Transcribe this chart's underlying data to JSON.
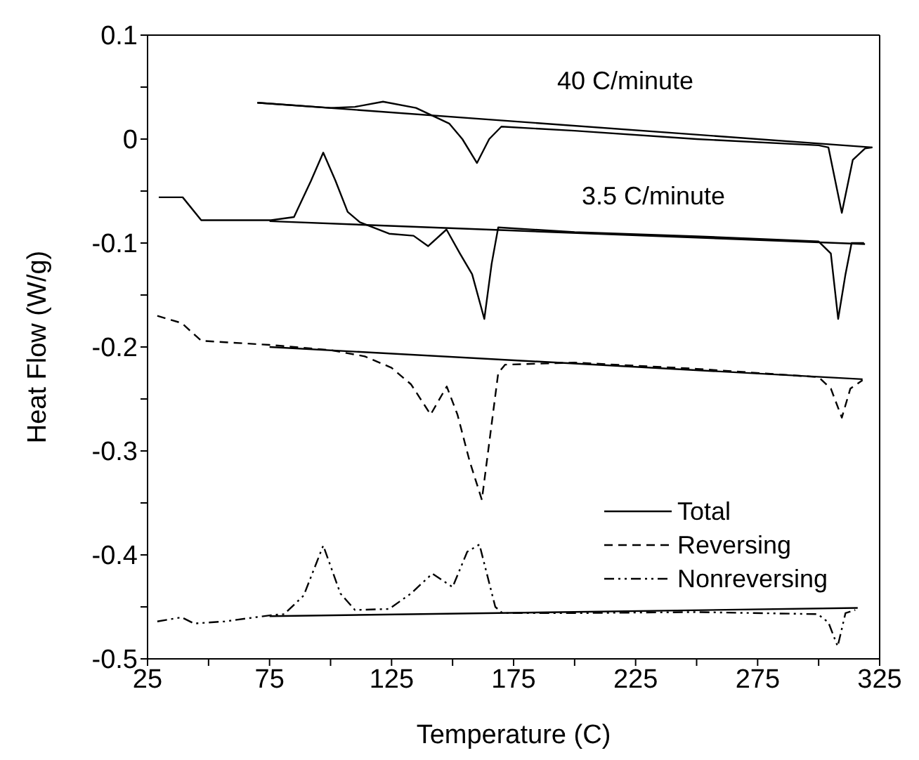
{
  "chart_data": {
    "type": "line",
    "xlabel": "Temperature (C)",
    "ylabel": "Heat Flow (W/g)",
    "xlim": [
      25,
      325
    ],
    "xticks": [
      25,
      {
        "value": 50,
        "label": null
      },
      75,
      {
        "value": 100,
        "label": null
      },
      125,
      {
        "value": 150,
        "label": null
      },
      175,
      {
        "value": 200,
        "label": null
      },
      225,
      {
        "value": 250,
        "label": null
      },
      275,
      {
        "value": 300,
        "label": null
      },
      325
    ],
    "ylim": [
      -0.5,
      0.1
    ],
    "yticks": [
      -0.5,
      {
        "value": -0.45,
        "label": null
      },
      -0.4,
      {
        "value": -0.35,
        "label": null
      },
      -0.3,
      {
        "value": -0.25,
        "label": null
      },
      -0.2,
      {
        "value": -0.15,
        "label": null
      },
      -0.1,
      {
        "value": -0.05,
        "label": null
      },
      0,
      {
        "value": 0.05,
        "label": null
      },
      0.1
    ],
    "legend": "right",
    "marker": "none",
    "annotations": [
      "40 C/minute",
      "3.5 C/minute"
    ],
    "series": [
      {
        "color": "#000000",
        "line_style": "solid",
        "x": [
          70,
          100,
          110,
          121.5,
          135,
          148.6,
          154,
          160,
          165,
          170,
          200,
          250,
          300,
          304,
          309.5,
          314,
          319,
          322
        ],
        "values": [
          0.035,
          0.03,
          0.031,
          0.036,
          0.03,
          0.015,
          0.0,
          -0.023,
          0.0,
          0.012,
          0.008,
          0.0,
          -0.006,
          -0.008,
          -0.071,
          -0.02,
          -0.009,
          -0.008
        ]
      },
      {
        "color": "#000000",
        "line_style": "solid",
        "x": [
          70,
          322
        ],
        "values": [
          0.035,
          -0.008
        ]
      },
      {
        "name": "Total",
        "color": "#000000",
        "line_style": "solid",
        "x": [
          29.6,
          39.4,
          47,
          75.6,
          85,
          92,
          97,
          102,
          107,
          112,
          124,
          134,
          140,
          147.5,
          153,
          158,
          163,
          166,
          168.7,
          200,
          250,
          300,
          305,
          308,
          311,
          313.5,
          318.6
        ],
        "values": [
          -0.056,
          -0.056,
          -0.078,
          -0.078,
          -0.075,
          -0.04,
          -0.013,
          -0.04,
          -0.07,
          -0.08,
          -0.091,
          -0.093,
          -0.103,
          -0.087,
          -0.11,
          -0.13,
          -0.173,
          -0.12,
          -0.085,
          -0.0895,
          -0.0935,
          -0.0985,
          -0.11,
          -0.173,
          -0.13,
          -0.1,
          -0.1
        ]
      },
      {
        "color": "#000000",
        "line_style": "solid",
        "x": [
          75,
          319
        ],
        "values": [
          -0.079,
          -0.101
        ]
      },
      {
        "name": "Reversing",
        "color": "#000000",
        "line_style": "dashed",
        "x": [
          29,
          39,
          47,
          75,
          100,
          114,
          125,
          133,
          141,
          147.6,
          152,
          157,
          162,
          168.7,
          171.5,
          200,
          250,
          300,
          305,
          309.5,
          313,
          318
        ],
        "values": [
          -0.17,
          -0.177,
          -0.194,
          -0.198,
          -0.203,
          -0.209,
          -0.22,
          -0.236,
          -0.265,
          -0.238,
          -0.265,
          -0.31,
          -0.347,
          -0.225,
          -0.217,
          -0.215,
          -0.221,
          -0.229,
          -0.24,
          -0.268,
          -0.24,
          -0.232
        ]
      },
      {
        "color": "#000000",
        "line_style": "solid",
        "x": [
          75,
          318
        ],
        "values": [
          -0.2,
          -0.231
        ]
      },
      {
        "name": "Nonreversing",
        "color": "#000000",
        "line_style": "dotted",
        "x": [
          29,
          39,
          44,
          56.6,
          75.6,
          81,
          89,
          97,
          104,
          110,
          124,
          133,
          141.7,
          150,
          156,
          161,
          167.5,
          170.4,
          200,
          250,
          299.7,
          304,
          307.8,
          311,
          315
        ],
        "values": [
          -0.464,
          -0.46,
          -0.466,
          -0.464,
          -0.458,
          -0.457,
          -0.439,
          -0.391,
          -0.437,
          -0.453,
          -0.452,
          -0.437,
          -0.418,
          -0.431,
          -0.397,
          -0.39,
          -0.45,
          -0.456,
          -0.456,
          -0.455,
          -0.457,
          -0.465,
          -0.488,
          -0.456,
          -0.453
        ]
      },
      {
        "color": "#000000",
        "line_style": "solid",
        "x": [
          75,
          316
        ],
        "values": [
          -0.459,
          -0.451
        ]
      }
    ]
  }
}
